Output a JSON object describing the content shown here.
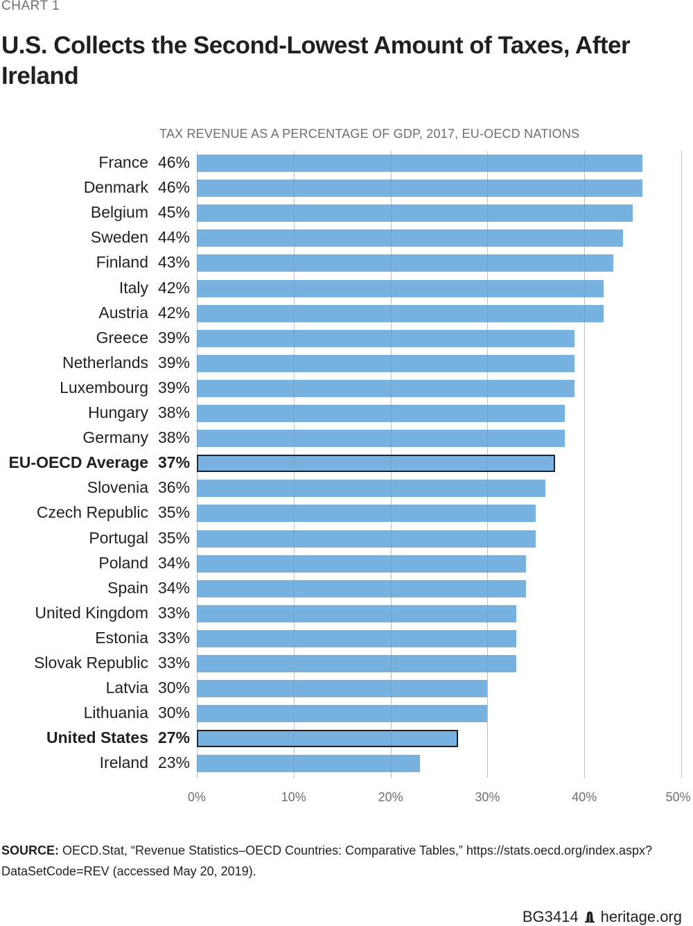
{
  "header": {
    "kicker": "CHART 1",
    "title": "U.S. Collects the Second-Lowest Amount of Taxes, After Ireland",
    "subtitle": "TAX REVENUE AS A PERCENTAGE OF GDP, 2017, EU-OECD NATIONS"
  },
  "colors": {
    "bar": "#78b2e0",
    "highlight_border": "#231f20",
    "grid": "#d8d9db",
    "text": "#231f20",
    "muted_text": "#6d6e71"
  },
  "chart_data": {
    "type": "bar",
    "orientation": "horizontal",
    "title": "U.S. Collects the Second-Lowest Amount of Taxes, After Ireland",
    "subtitle": "TAX REVENUE AS A PERCENTAGE OF GDP, 2017, EU-OECD NATIONS",
    "xlabel": "",
    "ylabel": "",
    "xlim": [
      0,
      50
    ],
    "x_ticks": [
      "0%",
      "10%",
      "20%",
      "30%",
      "40%",
      "50%"
    ],
    "grid": true,
    "legend": null,
    "categories": [
      "France",
      "Denmark",
      "Belgium",
      "Sweden",
      "Finland",
      "Italy",
      "Austria",
      "Greece",
      "Netherlands",
      "Luxembourg",
      "Hungary",
      "Germany",
      "EU-OECD Average",
      "Slovenia",
      "Czech Republic",
      "Portugal",
      "Poland",
      "Spain",
      "United Kingdom",
      "Estonia",
      "Slovak Republic",
      "Latvia",
      "Lithuania",
      "United States",
      "Ireland"
    ],
    "values": [
      46,
      46,
      45,
      44,
      43,
      42,
      42,
      39,
      39,
      39,
      38,
      38,
      37,
      36,
      35,
      35,
      34,
      34,
      33,
      33,
      33,
      30,
      30,
      27,
      23
    ],
    "value_labels": [
      "46%",
      "46%",
      "45%",
      "44%",
      "43%",
      "42%",
      "42%",
      "39%",
      "39%",
      "39%",
      "38%",
      "38%",
      "37%",
      "36%",
      "35%",
      "35%",
      "34%",
      "34%",
      "33%",
      "33%",
      "33%",
      "30%",
      "30%",
      "27%",
      "23%"
    ],
    "highlighted": [
      "EU-OECD Average",
      "United States"
    ]
  },
  "rows": [
    {
      "label": "France",
      "value": 46,
      "display": "46%",
      "highlight": false
    },
    {
      "label": "Denmark",
      "value": 46,
      "display": "46%",
      "highlight": false
    },
    {
      "label": "Belgium",
      "value": 45,
      "display": "45%",
      "highlight": false
    },
    {
      "label": "Sweden",
      "value": 44,
      "display": "44%",
      "highlight": false
    },
    {
      "label": "Finland",
      "value": 43,
      "display": "43%",
      "highlight": false
    },
    {
      "label": "Italy",
      "value": 42,
      "display": "42%",
      "highlight": false
    },
    {
      "label": "Austria",
      "value": 42,
      "display": "42%",
      "highlight": false
    },
    {
      "label": "Greece",
      "value": 39,
      "display": "39%",
      "highlight": false
    },
    {
      "label": "Netherlands",
      "value": 39,
      "display": "39%",
      "highlight": false
    },
    {
      "label": "Luxembourg",
      "value": 39,
      "display": "39%",
      "highlight": false
    },
    {
      "label": "Hungary",
      "value": 38,
      "display": "38%",
      "highlight": false
    },
    {
      "label": "Germany",
      "value": 38,
      "display": "38%",
      "highlight": false
    },
    {
      "label": "EU-OECD Average",
      "value": 37,
      "display": "37%",
      "highlight": true
    },
    {
      "label": "Slovenia",
      "value": 36,
      "display": "36%",
      "highlight": false
    },
    {
      "label": "Czech Republic",
      "value": 35,
      "display": "35%",
      "highlight": false
    },
    {
      "label": "Portugal",
      "value": 35,
      "display": "35%",
      "highlight": false
    },
    {
      "label": "Poland",
      "value": 34,
      "display": "34%",
      "highlight": false
    },
    {
      "label": "Spain",
      "value": 34,
      "display": "34%",
      "highlight": false
    },
    {
      "label": "United Kingdom",
      "value": 33,
      "display": "33%",
      "highlight": false
    },
    {
      "label": "Estonia",
      "value": 33,
      "display": "33%",
      "highlight": false
    },
    {
      "label": "Slovak Republic",
      "value": 33,
      "display": "33%",
      "highlight": false
    },
    {
      "label": "Latvia",
      "value": 30,
      "display": "30%",
      "highlight": false
    },
    {
      "label": "Lithuania",
      "value": 30,
      "display": "30%",
      "highlight": false
    },
    {
      "label": "United States",
      "value": 27,
      "display": "27%",
      "highlight": true
    },
    {
      "label": "Ireland",
      "value": 23,
      "display": "23%",
      "highlight": false
    }
  ],
  "axis": {
    "ticks": [
      {
        "value": 0,
        "label": "0%"
      },
      {
        "value": 10,
        "label": "10%"
      },
      {
        "value": 20,
        "label": "20%"
      },
      {
        "value": 30,
        "label": "30%"
      },
      {
        "value": 40,
        "label": "40%"
      },
      {
        "value": 50,
        "label": "50%"
      }
    ]
  },
  "source": {
    "label": "SOURCE:",
    "text": " OECD.Stat, “Revenue Statistics–OECD Countries: Comparative Tables,” https://stats.oecd.org/index.aspx?DataSetCode=REV (accessed May 20, 2019)."
  },
  "footer": {
    "report_id": "BG3414",
    "site": "heritage.org",
    "logo_icon": "liberty-bell-icon"
  }
}
